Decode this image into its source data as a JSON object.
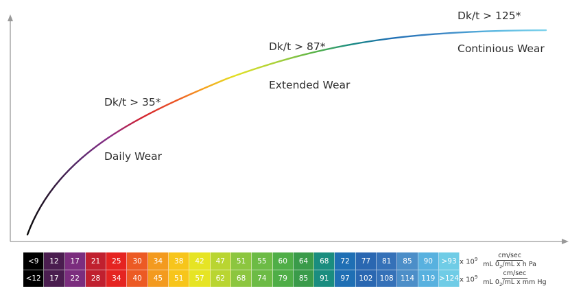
{
  "zones": [
    {
      "threshold": "Dk/t > 35*",
      "wear": "Daily Wear"
    },
    {
      "threshold": "Dk/t > 87*",
      "wear": "Extended Wear"
    },
    {
      "threshold": "Dk/t > 125*",
      "wear": "Continious Wear"
    }
  ],
  "scale": {
    "colors": [
      "#000000",
      "#4a1d4f",
      "#7b2d7e",
      "#c0202f",
      "#e52421",
      "#ec5a24",
      "#f39a1f",
      "#f7c51b",
      "#e6e424",
      "#b9d531",
      "#8cc63f",
      "#6cbb45",
      "#4fae47",
      "#3a9b4a",
      "#1a8d7f",
      "#1f6fb4",
      "#2a67b1",
      "#3571b8",
      "#4c8ec8",
      "#58b1df",
      "#6fcce6"
    ],
    "row1": [
      "<9",
      "12",
      "17",
      "21",
      "25",
      "30",
      "34",
      "38",
      "42",
      "47",
      "51",
      "55",
      "60",
      "64",
      "68",
      "72",
      "77",
      "81",
      "85",
      "90",
      ">93"
    ],
    "row2": [
      "<12",
      "17",
      "22",
      "28",
      "34",
      "40",
      "45",
      "51",
      "57",
      "62",
      "68",
      "74",
      "79",
      "85",
      "91",
      "97",
      "102",
      "108",
      "114",
      "119",
      ">124"
    ]
  },
  "units": {
    "multiplier_base": "x 10",
    "multiplier_exp": "9",
    "row1_numerator": "cm/sec",
    "row1_denominator_a": "mL 0",
    "row1_denominator_sub": "2",
    "row1_denominator_b": "/mL x h Pa",
    "row2_numerator": "cm/sec",
    "row2_denominator_a": "mL 0",
    "row2_denominator_sub": "2",
    "row2_denominator_b": "/mL x mm Hg"
  }
}
